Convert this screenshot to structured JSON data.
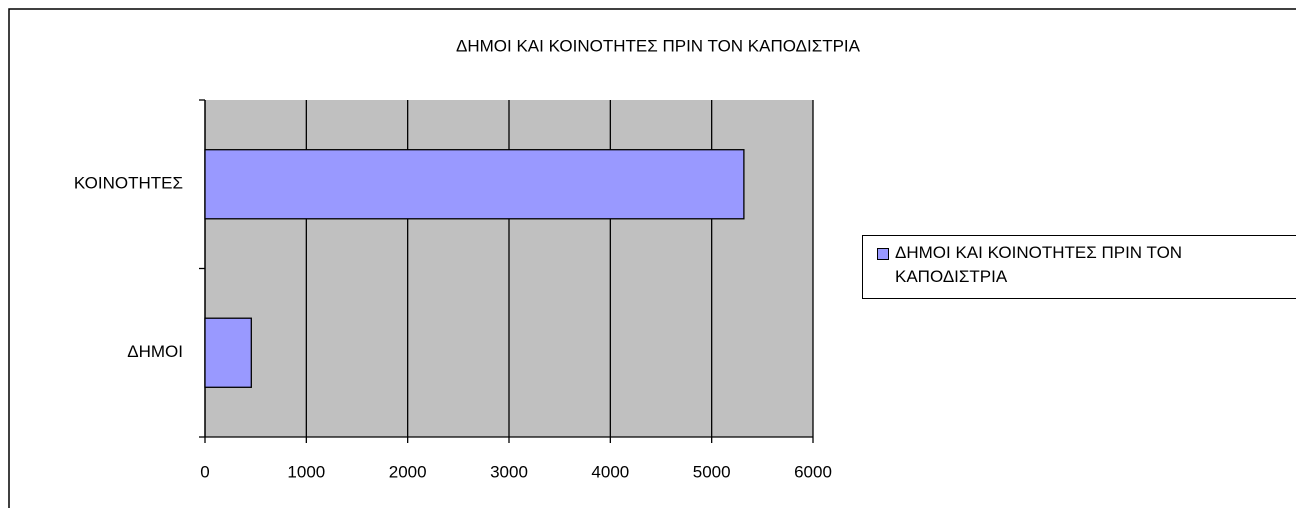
{
  "chart_data": {
    "type": "bar",
    "orientation": "horizontal",
    "title": "ΔΗΜΟΙ ΚΑΙ ΚΟΙΝΟΤΗΤΕΣ ΠΡΙΝ ΤΟΝ ΚΑΠΟΔΙΣΤΡΙΑ",
    "categories": [
      "ΔΗΜΟΙ",
      "ΚΟΙΝΟΤΗΤΕΣ"
    ],
    "series": [
      {
        "name": "ΔΗΜΟΙ ΚΑΙ ΚΟΙΝΟΤΗΤΕΣ ΠΡΙΝ ΤΟΝ ΚΑΠΟΔΙΣΤΡΙΑ",
        "color": "#9999ff",
        "values": [
          457,
          5318
        ]
      }
    ],
    "xlim": [
      0,
      6000
    ],
    "xticks": [
      0,
      1000,
      2000,
      3000,
      4000,
      5000,
      6000
    ],
    "grid": true,
    "legend": "right"
  }
}
